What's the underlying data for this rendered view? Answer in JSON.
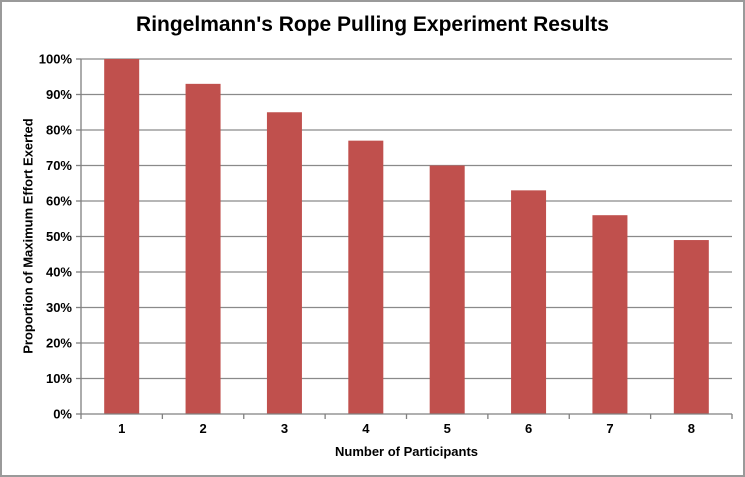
{
  "chart_data": {
    "type": "bar",
    "title": "Ringelmann's Rope Pulling Experiment Results",
    "categories": [
      "1",
      "2",
      "3",
      "4",
      "5",
      "6",
      "7",
      "8"
    ],
    "values": [
      100,
      93,
      85,
      77,
      70,
      63,
      56,
      49
    ],
    "xlabel": "Number of Participants",
    "ylabel": "Proportion of Maximum Effort Exerted",
    "ylim": [
      0,
      100
    ],
    "y_tick_step": 10,
    "y_tick_labels": [
      "0%",
      "10%",
      "20%",
      "30%",
      "40%",
      "50%",
      "60%",
      "70%",
      "80%",
      "90%",
      "100%"
    ],
    "grid": "horizontal",
    "legend": "none",
    "colors": {
      "bar_fill": "#c0504d",
      "gridline": "#8a8a8a",
      "axis_line": "#808080",
      "tick_mark": "#808080",
      "text": "#000000",
      "frame_border": "#9a9a9a",
      "background": "#ffffff"
    }
  }
}
